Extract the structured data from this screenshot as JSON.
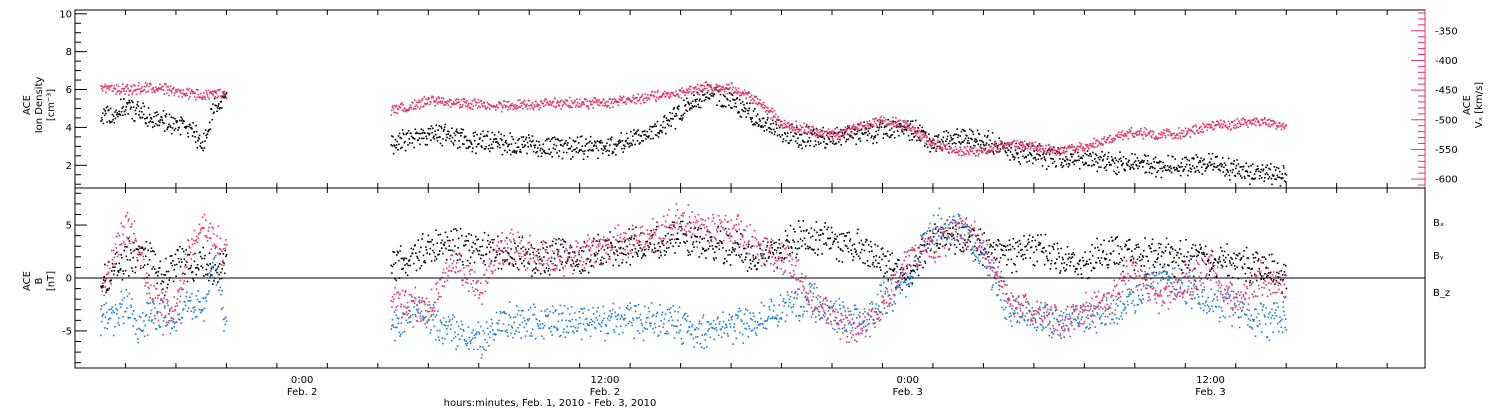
{
  "colors": {
    "black": "#000000",
    "pink": "#e8326a",
    "blue": "#1f7fd6"
  },
  "chart_data": [
    {
      "type": "scatter",
      "panel": "top",
      "ylabel_lines": [
        "ACE",
        "Ion Density",
        "[cm⁻³]"
      ],
      "y2label_lines": [
        "ACE",
        "Vₓ [km/s]"
      ],
      "ylim": [
        0.8,
        10.2
      ],
      "y_ticks": [
        2,
        4,
        6,
        8,
        10
      ],
      "y2lim": [
        -615,
        -315
      ],
      "y2_ticks": [
        -350,
        -400,
        -450,
        -500,
        -550,
        -600
      ],
      "series": [
        {
          "key": "density",
          "color": "black",
          "axis": "left",
          "segments": [
            [
              [
                -8.0,
                4.5
              ],
              [
                -7.0,
                5.1
              ],
              [
                -6.5,
                4.8
              ],
              [
                -5.5,
                4.3
              ],
              [
                -5.0,
                4.2
              ],
              [
                -4.3,
                3.8
              ],
              [
                -4.0,
                2.8
              ],
              [
                -3.5,
                5.3
              ],
              [
                -3.0,
                5.5
              ]
            ],
            [
              [
                3.5,
                3.2
              ],
              [
                5.0,
                3.7
              ],
              [
                7.0,
                3.3
              ],
              [
                9.0,
                3.1
              ],
              [
                11.0,
                3.0
              ],
              [
                12.0,
                3.0
              ],
              [
                13.0,
                3.3
              ],
              [
                14.0,
                3.8
              ],
              [
                15.0,
                4.8
              ],
              [
                16.0,
                5.8
              ],
              [
                17.0,
                5.5
              ],
              [
                18.0,
                4.5
              ],
              [
                19.0,
                3.7
              ],
              [
                20.0,
                3.5
              ],
              [
                21.0,
                3.5
              ],
              [
                22.0,
                3.7
              ],
              [
                23.0,
                3.8
              ],
              [
                24.0,
                4.0
              ],
              [
                25.0,
                3.2
              ],
              [
                26.0,
                3.5
              ],
              [
                27.0,
                3.3
              ],
              [
                28.0,
                2.8
              ],
              [
                30.0,
                2.4
              ],
              [
                32.0,
                2.2
              ],
              [
                34.0,
                2.0
              ],
              [
                35.0,
                2.0
              ],
              [
                36.0,
                2.2
              ],
              [
                37.0,
                1.8
              ],
              [
                38.0,
                1.6
              ],
              [
                39.0,
                1.5
              ]
            ]
          ]
        },
        {
          "key": "speed",
          "color": "pink",
          "axis": "right",
          "segments": [
            [
              [
                -8.0,
                -445
              ],
              [
                -7.0,
                -448
              ],
              [
                -6.0,
                -445
              ],
              [
                -5.0,
                -450
              ],
              [
                -4.0,
                -460
              ],
              [
                -3.5,
                -455
              ],
              [
                -3.0,
                -458
              ]
            ],
            [
              [
                3.5,
                -482
              ],
              [
                4.5,
                -475
              ],
              [
                5.0,
                -465
              ],
              [
                6.0,
                -470
              ],
              [
                8.0,
                -475
              ],
              [
                10.0,
                -472
              ],
              [
                12.0,
                -470
              ],
              [
                14.0,
                -460
              ],
              [
                16.0,
                -445
              ],
              [
                17.0,
                -445
              ],
              [
                18.0,
                -465
              ],
              [
                19.0,
                -505
              ],
              [
                20.0,
                -515
              ],
              [
                21.0,
                -525
              ],
              [
                22.0,
                -510
              ],
              [
                23.0,
                -500
              ],
              [
                24.0,
                -510
              ],
              [
                25.0,
                -540
              ],
              [
                26.0,
                -555
              ],
              [
                27.0,
                -550
              ],
              [
                28.0,
                -540
              ],
              [
                29.0,
                -545
              ],
              [
                30.0,
                -552
              ],
              [
                31.0,
                -545
              ],
              [
                32.0,
                -530
              ],
              [
                33.0,
                -520
              ],
              [
                34.0,
                -525
              ],
              [
                35.0,
                -520
              ],
              [
                36.0,
                -510
              ],
              [
                37.0,
                -505
              ],
              [
                38.0,
                -500
              ],
              [
                39.0,
                -510
              ]
            ]
          ]
        }
      ]
    },
    {
      "type": "scatter",
      "panel": "bottom",
      "ylabel_lines": [
        "ACE",
        "B",
        "[nT]"
      ],
      "ylim": [
        -8.5,
        8.5
      ],
      "y_ticks": [
        5,
        0,
        -5
      ],
      "series": [
        {
          "key": "bx",
          "name": "Bₓ",
          "color": "black",
          "segments": [
            [
              [
                -8.0,
                -1
              ],
              [
                -7.5,
                1
              ],
              [
                -7.0,
                2
              ],
              [
                -6.0,
                2
              ],
              [
                -5.5,
                0
              ],
              [
                -5.0,
                2
              ],
              [
                -4.5,
                1
              ],
              [
                -4.0,
                2
              ],
              [
                -3.5,
                0
              ],
              [
                -3.0,
                2
              ]
            ],
            [
              [
                3.5,
                1
              ],
              [
                5.0,
                3
              ],
              [
                7.0,
                3
              ],
              [
                9.0,
                2
              ],
              [
                11.0,
                2
              ],
              [
                13.0,
                3
              ],
              [
                15.0,
                4
              ],
              [
                17.0,
                3
              ],
              [
                18.0,
                2
              ],
              [
                19.0,
                3
              ],
              [
                20.0,
                4
              ],
              [
                22.0,
                3
              ],
              [
                24.0,
                0
              ],
              [
                25.0,
                4
              ],
              [
                26.0,
                4
              ],
              [
                27.0,
                3
              ],
              [
                28.0,
                2
              ],
              [
                29.0,
                3
              ],
              [
                30.0,
                2
              ],
              [
                31.0,
                1
              ],
              [
                32.0,
                3
              ],
              [
                33.0,
                2
              ],
              [
                34.0,
                2
              ],
              [
                36.0,
                2
              ],
              [
                38.0,
                1
              ],
              [
                39.0,
                0
              ]
            ]
          ]
        },
        {
          "key": "by",
          "name": "Bᵧ",
          "color": "blue",
          "segments": [
            [
              [
                -8.0,
                -4
              ],
              [
                -7.5,
                -4
              ],
              [
                -7.0,
                -2
              ],
              [
                -6.5,
                -5
              ],
              [
                -6.0,
                -3
              ],
              [
                -5.0,
                -4
              ],
              [
                -4.5,
                -2
              ],
              [
                -4.0,
                -3
              ],
              [
                -3.5,
                2
              ],
              [
                -3.0,
                -5
              ]
            ],
            [
              [
                3.5,
                -5
              ],
              [
                4.5,
                -3
              ],
              [
                6.0,
                -5
              ],
              [
                7.0,
                -6
              ],
              [
                8.0,
                -4
              ],
              [
                10.0,
                -4
              ],
              [
                12.0,
                -4
              ],
              [
                14.0,
                -4
              ],
              [
                16.0,
                -5
              ],
              [
                18.0,
                -4
              ],
              [
                20.0,
                -2
              ],
              [
                22.0,
                -4
              ],
              [
                24.0,
                0
              ],
              [
                25.0,
                5
              ],
              [
                26.0,
                5
              ],
              [
                27.0,
                2
              ],
              [
                28.0,
                -3
              ],
              [
                30.0,
                -4
              ],
              [
                32.0,
                -3
              ],
              [
                34.0,
                0
              ],
              [
                36.0,
                -2
              ],
              [
                37.0,
                -3
              ],
              [
                38.0,
                -4
              ],
              [
                39.0,
                -4
              ]
            ]
          ]
        },
        {
          "key": "bz",
          "name": "B_z",
          "color": "pink",
          "segments": [
            [
              [
                -8.0,
                -2
              ],
              [
                -7.5,
                2
              ],
              [
                -7.0,
                5
              ],
              [
                -6.5,
                3
              ],
              [
                -6.0,
                -2
              ],
              [
                -5.0,
                -3
              ],
              [
                -4.5,
                3
              ],
              [
                -4.0,
                5
              ],
              [
                -3.5,
                4
              ],
              [
                -3.0,
                2
              ]
            ],
            [
              [
                3.5,
                -2
              ],
              [
                5.0,
                -3
              ],
              [
                6.0,
                2
              ],
              [
                7.0,
                -1
              ],
              [
                8.0,
                3
              ],
              [
                10.0,
                2
              ],
              [
                12.0,
                3
              ],
              [
                14.0,
                4
              ],
              [
                15.0,
                6
              ],
              [
                16.0,
                4
              ],
              [
                17.0,
                5
              ],
              [
                18.0,
                3
              ],
              [
                19.0,
                2
              ],
              [
                20.0,
                -1
              ],
              [
                21.0,
                -4
              ],
              [
                22.0,
                -5
              ],
              [
                23.0,
                -3
              ],
              [
                24.0,
                2
              ],
              [
                25.0,
                3
              ],
              [
                26.0,
                5
              ],
              [
                27.0,
                3
              ],
              [
                28.0,
                -2
              ],
              [
                30.0,
                -4
              ],
              [
                32.0,
                -2
              ],
              [
                33.0,
                1
              ],
              [
                34.0,
                -2
              ],
              [
                36.0,
                1
              ],
              [
                37.0,
                -2
              ],
              [
                38.0,
                0
              ],
              [
                39.0,
                -1
              ]
            ]
          ]
        }
      ]
    }
  ],
  "x_axis": {
    "xlim": [
      -9,
      44.5
    ],
    "ticks": [
      {
        "x": 0,
        "time": "0:00",
        "date": "Feb. 2"
      },
      {
        "x": 12,
        "time": "12:00",
        "date": "Feb. 2"
      },
      {
        "x": 24,
        "time": "0:00",
        "date": "Feb. 3"
      },
      {
        "x": 36,
        "time": "12:00",
        "date": "Feb. 3"
      }
    ],
    "label": "hours:minutes, Feb. 1, 2010 - Feb. 3, 2010"
  }
}
